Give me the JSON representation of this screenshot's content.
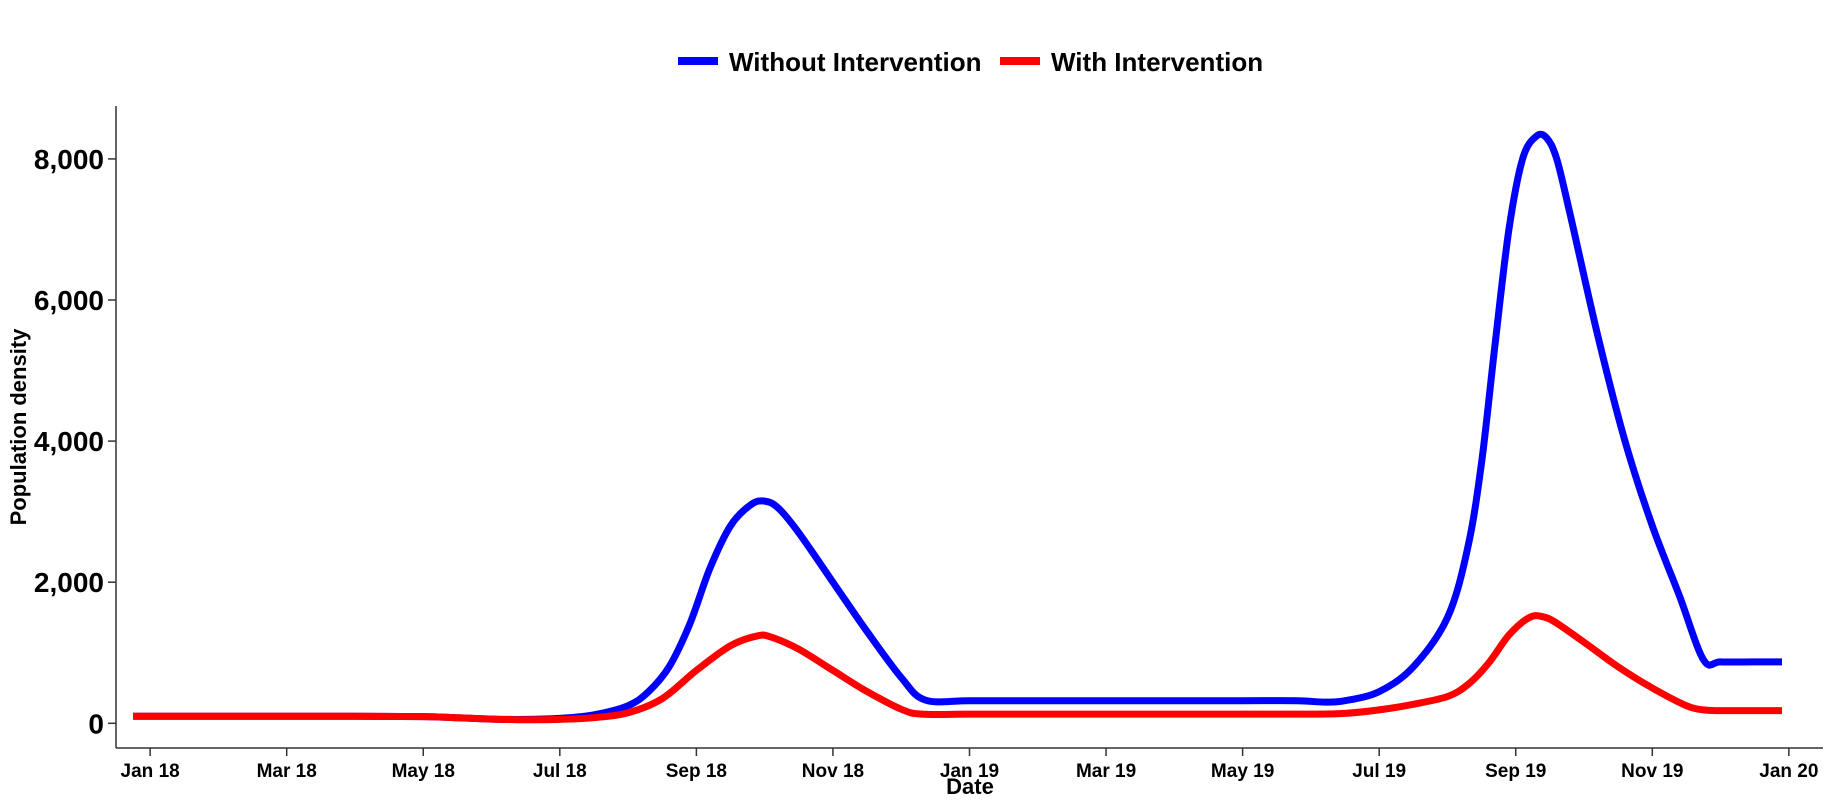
{
  "chart_data": {
    "type": "line",
    "title": "",
    "xlabel": "Date",
    "ylabel": "Population density",
    "ylim": [
      -350,
      8750
    ],
    "xlim": [
      -0.5,
      24.5
    ],
    "grid": false,
    "legend_position": "top-center",
    "x_ticks": [
      {
        "label": "Jan 18",
        "month": 0
      },
      {
        "label": "Mar 18",
        "month": 2
      },
      {
        "label": "May 18",
        "month": 4
      },
      {
        "label": "Jul 18",
        "month": 6
      },
      {
        "label": "Sep 18",
        "month": 8
      },
      {
        "label": "Nov 18",
        "month": 10
      },
      {
        "label": "Jan 19",
        "month": 12
      },
      {
        "label": "Mar 19",
        "month": 14
      },
      {
        "label": "May 19",
        "month": 16
      },
      {
        "label": "Jul 19",
        "month": 18
      },
      {
        "label": "Sep 19",
        "month": 20
      },
      {
        "label": "Nov 19",
        "month": 22
      },
      {
        "label": "Jan 20",
        "month": 24
      }
    ],
    "y_ticks": [
      {
        "label": "0",
        "value": 0
      },
      {
        "label": "2,000",
        "value": 2000
      },
      {
        "label": "4,000",
        "value": 4000
      },
      {
        "label": "6,000",
        "value": 6000
      },
      {
        "label": "8,000",
        "value": 8000
      }
    ],
    "series": [
      {
        "name": "Without Intervention",
        "color": "#0000FF",
        "points": [
          [
            -0.25,
            100
          ],
          [
            1,
            100
          ],
          [
            2,
            100
          ],
          [
            3,
            100
          ],
          [
            4,
            95
          ],
          [
            4.5,
            80
          ],
          [
            5,
            60
          ],
          [
            5.5,
            55
          ],
          [
            6,
            70
          ],
          [
            6.5,
            120
          ],
          [
            7,
            250
          ],
          [
            7.3,
            450
          ],
          [
            7.6,
            800
          ],
          [
            7.9,
            1400
          ],
          [
            8.2,
            2200
          ],
          [
            8.5,
            2800
          ],
          [
            8.8,
            3100
          ],
          [
            9.0,
            3150
          ],
          [
            9.2,
            3050
          ],
          [
            9.5,
            2700
          ],
          [
            10,
            2000
          ],
          [
            10.5,
            1300
          ],
          [
            11,
            650
          ],
          [
            11.35,
            330
          ],
          [
            12,
            320
          ],
          [
            13,
            320
          ],
          [
            14,
            320
          ],
          [
            15,
            320
          ],
          [
            16,
            320
          ],
          [
            16.8,
            320
          ],
          [
            17.2,
            300
          ],
          [
            17.5,
            320
          ],
          [
            18,
            450
          ],
          [
            18.5,
            800
          ],
          [
            19,
            1500
          ],
          [
            19.3,
            2500
          ],
          [
            19.5,
            3700
          ],
          [
            19.7,
            5400
          ],
          [
            19.9,
            7000
          ],
          [
            20.1,
            8000
          ],
          [
            20.3,
            8320
          ],
          [
            20.45,
            8300
          ],
          [
            20.6,
            8000
          ],
          [
            20.8,
            7200
          ],
          [
            21.2,
            5500
          ],
          [
            21.6,
            4000
          ],
          [
            22,
            2800
          ],
          [
            22.4,
            1800
          ],
          [
            22.75,
            900
          ],
          [
            23,
            870
          ],
          [
            23.5,
            870
          ],
          [
            23.9,
            870
          ]
        ]
      },
      {
        "name": "With Intervention",
        "color": "#FF0000",
        "points": [
          [
            -0.25,
            100
          ],
          [
            1,
            100
          ],
          [
            2,
            100
          ],
          [
            3,
            100
          ],
          [
            4,
            95
          ],
          [
            4.5,
            80
          ],
          [
            5,
            60
          ],
          [
            5.5,
            50
          ],
          [
            6,
            55
          ],
          [
            6.5,
            80
          ],
          [
            7,
            150
          ],
          [
            7.5,
            350
          ],
          [
            8,
            750
          ],
          [
            8.5,
            1100
          ],
          [
            8.9,
            1240
          ],
          [
            9.1,
            1220
          ],
          [
            9.5,
            1050
          ],
          [
            10,
            750
          ],
          [
            10.5,
            450
          ],
          [
            11,
            200
          ],
          [
            11.3,
            130
          ],
          [
            12,
            130
          ],
          [
            13,
            130
          ],
          [
            14,
            130
          ],
          [
            15,
            130
          ],
          [
            16,
            130
          ],
          [
            17,
            130
          ],
          [
            17.5,
            140
          ],
          [
            18,
            190
          ],
          [
            18.5,
            270
          ],
          [
            19,
            380
          ],
          [
            19.3,
            550
          ],
          [
            19.6,
            850
          ],
          [
            19.9,
            1250
          ],
          [
            20.2,
            1500
          ],
          [
            20.4,
            1510
          ],
          [
            20.6,
            1420
          ],
          [
            21,
            1150
          ],
          [
            21.5,
            800
          ],
          [
            22,
            500
          ],
          [
            22.5,
            250
          ],
          [
            22.75,
            190
          ],
          [
            23,
            180
          ],
          [
            23.5,
            180
          ],
          [
            23.9,
            180
          ]
        ]
      }
    ]
  }
}
